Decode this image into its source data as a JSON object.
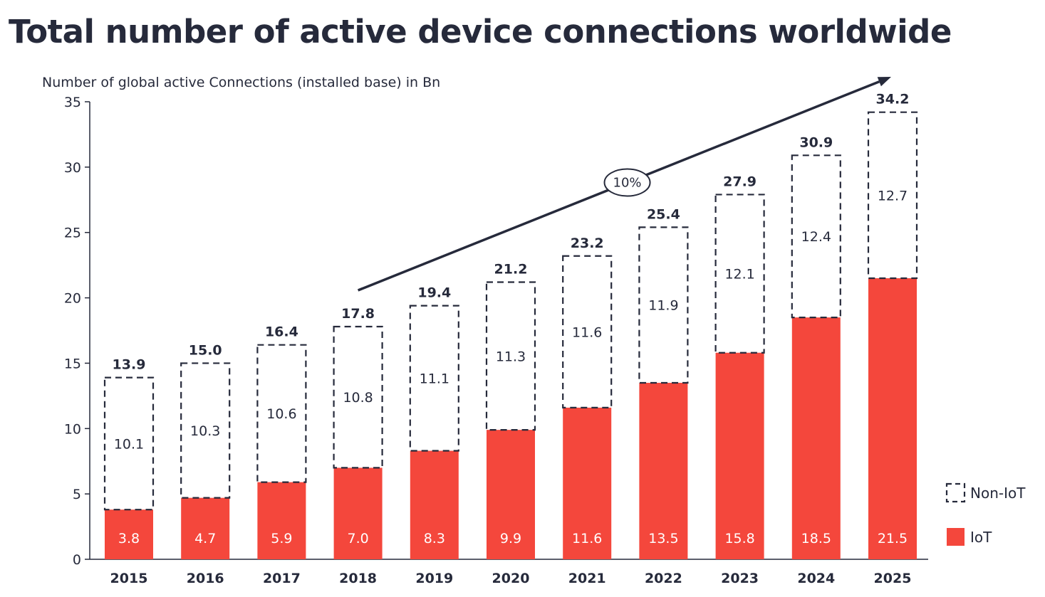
{
  "colors": {
    "iot": "#f4473c",
    "text": "#262a3b",
    "non_iot_border": "#262a3b"
  },
  "chart_data": {
    "type": "bar",
    "stacked": true,
    "title": "Total number of active device connections worldwide",
    "ylabel": "Number of global active Connections (installed base) in Bn",
    "xlabel": "",
    "ylim": [
      0,
      35
    ],
    "yticks": [
      0,
      5,
      10,
      15,
      20,
      25,
      30,
      35
    ],
    "grid": false,
    "legend_position": "right",
    "categories": [
      "2015",
      "2016",
      "2017",
      "2018",
      "2019",
      "2020",
      "2021",
      "2022",
      "2023",
      "2024",
      "2025"
    ],
    "series": [
      {
        "name": "IoT",
        "values": [
          3.8,
          4.7,
          5.9,
          7.0,
          8.3,
          9.9,
          11.6,
          13.5,
          15.8,
          18.5,
          21.5
        ],
        "labels": [
          "3.8",
          "4.7",
          "5.9",
          "7.0",
          "8.3",
          "9.9",
          "11.6",
          "13.5",
          "15.8",
          "18.5",
          "21.5"
        ]
      },
      {
        "name": "Non-IoT",
        "values": [
          10.1,
          10.3,
          10.6,
          10.8,
          11.1,
          11.3,
          11.6,
          11.9,
          12.1,
          12.4,
          12.7
        ],
        "labels": [
          "10.1",
          "10.3",
          "10.6",
          "10.8",
          "11.1",
          "11.3",
          "11.6",
          "11.9",
          "12.1",
          "12.4",
          "12.7"
        ]
      }
    ],
    "totals": [
      13.9,
      15.0,
      16.4,
      17.8,
      19.4,
      21.2,
      23.2,
      25.4,
      27.9,
      30.9,
      34.2
    ],
    "total_labels": [
      "13.9",
      "15.0",
      "16.4",
      "17.8",
      "19.4",
      "21.2",
      "23.2",
      "25.4",
      "27.9",
      "30.9",
      "34.2"
    ],
    "annotation": {
      "text": "10%",
      "from_category": "2018",
      "to_category": "2025"
    }
  },
  "legend": {
    "items": [
      {
        "label": "Non-IoT",
        "style": "dashed"
      },
      {
        "label": "IoT",
        "style": "filled"
      }
    ]
  }
}
